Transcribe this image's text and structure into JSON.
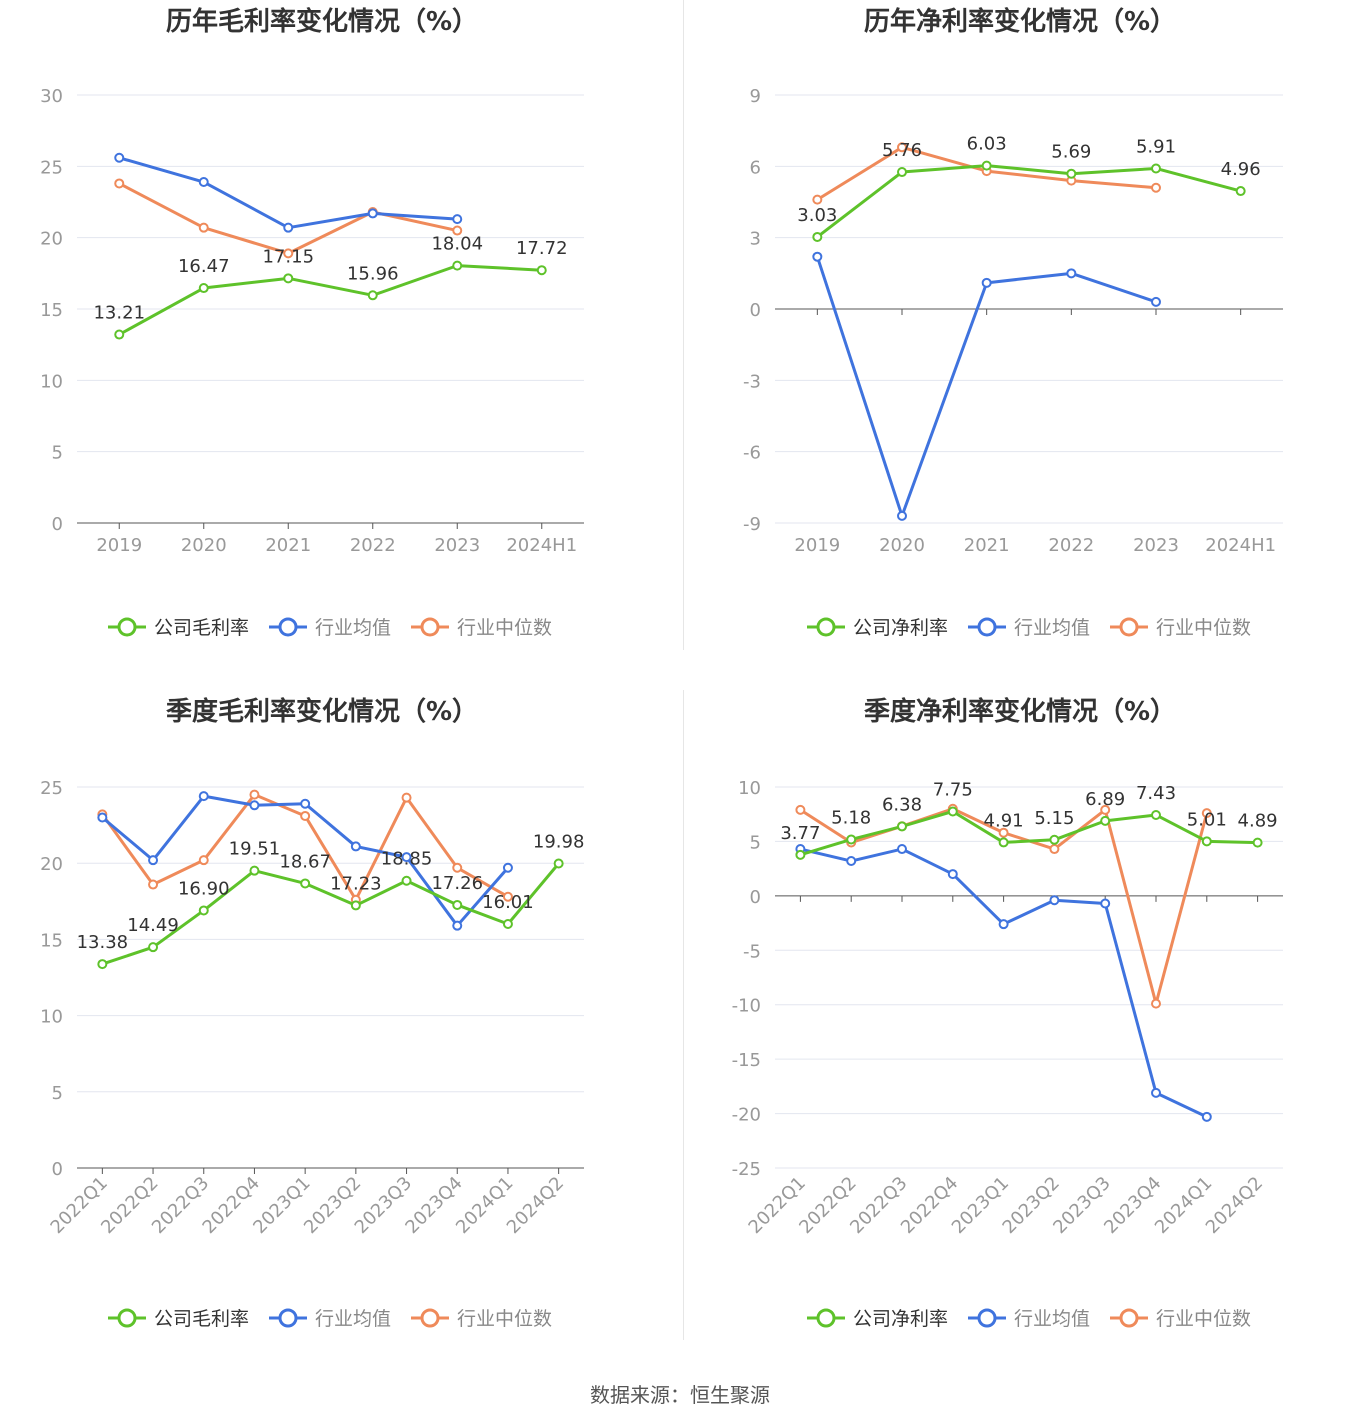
{
  "source": "数据来源：恒生聚源",
  "colors": {
    "company": "#5ec22a",
    "avg": "#3f73de",
    "median": "#ef8a5a",
    "grid": "#e3e6ef",
    "axis": "#555555",
    "label": "#333333",
    "tick": "#999999"
  },
  "chart_data": [
    {
      "id": "annual-gross",
      "type": "line",
      "title": "历年毛利率变化情况（%）",
      "categories": [
        "2019",
        "2020",
        "2021",
        "2022",
        "2023",
        "2024H1"
      ],
      "ylim": [
        0,
        30
      ],
      "yticks": [
        0,
        5,
        10,
        15,
        20,
        25,
        30
      ],
      "rotate_x": false,
      "legend": [
        "公司毛利率",
        "行业均值",
        "行业中位数"
      ],
      "series": [
        {
          "name": "公司毛利率",
          "role": "company",
          "values": [
            13.21,
            16.47,
            17.15,
            15.96,
            18.04,
            17.72
          ],
          "labels": [
            "13.21",
            "16.47",
            "17.15",
            "15.96",
            "18.04",
            "17.72"
          ]
        },
        {
          "name": "行业均值",
          "role": "avg",
          "values": [
            25.6,
            23.9,
            20.7,
            21.7,
            21.3,
            null
          ]
        },
        {
          "name": "行业中位数",
          "role": "median",
          "values": [
            23.8,
            20.7,
            18.9,
            21.8,
            20.5,
            null
          ]
        }
      ]
    },
    {
      "id": "annual-net",
      "type": "line",
      "title": "历年净利率变化情况（%）",
      "categories": [
        "2019",
        "2020",
        "2021",
        "2022",
        "2023",
        "2024H1"
      ],
      "ylim": [
        -9,
        9
      ],
      "yticks": [
        -9,
        -6,
        -3,
        0,
        3,
        6,
        9
      ],
      "rotate_x": false,
      "legend": [
        "公司净利率",
        "行业均值",
        "行业中位数"
      ],
      "series": [
        {
          "name": "公司净利率",
          "role": "company",
          "values": [
            3.03,
            5.76,
            6.03,
            5.69,
            5.91,
            4.96
          ],
          "labels": [
            "3.03",
            "5.76",
            "6.03",
            "5.69",
            "5.91",
            "4.96"
          ]
        },
        {
          "name": "行业均值",
          "role": "avg",
          "values": [
            2.2,
            -8.7,
            1.1,
            1.5,
            0.3,
            null
          ]
        },
        {
          "name": "行业中位数",
          "role": "median",
          "values": [
            4.6,
            6.8,
            5.8,
            5.4,
            5.1,
            null
          ]
        }
      ]
    },
    {
      "id": "quarterly-gross",
      "type": "line",
      "title": "季度毛利率变化情况（%）",
      "categories": [
        "2022Q1",
        "2022Q2",
        "2022Q3",
        "2022Q4",
        "2023Q1",
        "2023Q2",
        "2023Q3",
        "2023Q4",
        "2024Q1",
        "2024Q2"
      ],
      "ylim": [
        0,
        25
      ],
      "yticks": [
        0,
        5,
        10,
        15,
        20,
        25
      ],
      "rotate_x": true,
      "legend": [
        "公司毛利率",
        "行业均值",
        "行业中位数"
      ],
      "series": [
        {
          "name": "公司毛利率",
          "role": "company",
          "values": [
            13.38,
            14.49,
            16.9,
            19.51,
            18.67,
            17.23,
            18.85,
            17.26,
            16.01,
            19.98
          ],
          "labels": [
            "13.38",
            "14.49",
            "16.90",
            "19.51",
            "18.67",
            "17.23",
            "18.85",
            "17.26",
            "16.01",
            "19.98"
          ]
        },
        {
          "name": "行业均值",
          "role": "avg",
          "values": [
            23.0,
            20.2,
            24.4,
            23.8,
            23.9,
            21.1,
            20.4,
            15.9,
            19.7,
            null
          ]
        },
        {
          "name": "行业中位数",
          "role": "median",
          "values": [
            23.2,
            18.6,
            20.2,
            24.5,
            23.1,
            17.6,
            24.3,
            19.7,
            17.8,
            null
          ]
        }
      ]
    },
    {
      "id": "quarterly-net",
      "type": "line",
      "title": "季度净利率变化情况（%）",
      "categories": [
        "2022Q1",
        "2022Q2",
        "2022Q3",
        "2022Q4",
        "2023Q1",
        "2023Q2",
        "2023Q3",
        "2023Q4",
        "2024Q1",
        "2024Q2"
      ],
      "ylim": [
        -25,
        10
      ],
      "yticks": [
        -25,
        -20,
        -15,
        -10,
        -5,
        0,
        5,
        10
      ],
      "rotate_x": true,
      "legend": [
        "公司净利率",
        "行业均值",
        "行业中位数"
      ],
      "series": [
        {
          "name": "公司净利率",
          "role": "company",
          "values": [
            3.77,
            5.18,
            6.38,
            7.75,
            4.91,
            5.15,
            6.89,
            7.43,
            5.01,
            4.89
          ],
          "labels": [
            "3.77",
            "5.18",
            "6.38",
            "7.75",
            "4.91",
            "5.15",
            "6.89",
            "7.43",
            "5.01",
            "4.89"
          ]
        },
        {
          "name": "行业均值",
          "role": "avg",
          "values": [
            4.3,
            3.2,
            4.3,
            2.0,
            -2.6,
            -0.4,
            -0.7,
            -18.1,
            -20.3,
            null
          ]
        },
        {
          "name": "行业中位数",
          "role": "median",
          "values": [
            7.9,
            4.9,
            6.4,
            8.0,
            5.8,
            4.3,
            7.9,
            -9.9,
            7.6,
            null
          ]
        }
      ]
    }
  ]
}
